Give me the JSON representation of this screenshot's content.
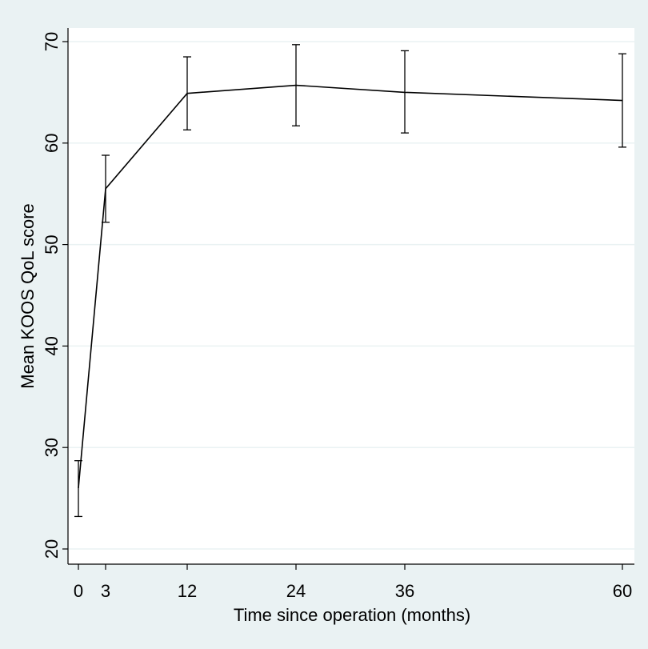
{
  "chart_data": {
    "type": "line",
    "title": "",
    "xlabel": "Time since operation (months)",
    "ylabel": "Mean KOOS QoL score",
    "xlim": [
      0,
      60
    ],
    "ylim": [
      20,
      70
    ],
    "xticks": [
      0,
      3,
      12,
      24,
      36,
      60
    ],
    "yticks": [
      20,
      30,
      40,
      50,
      60,
      70
    ],
    "grid": true,
    "x": [
      0,
      3,
      12,
      24,
      36,
      60
    ],
    "values": [
      26,
      55.5,
      64.9,
      65.7,
      65.0,
      64.2
    ],
    "ci_lower": [
      23.2,
      52.2,
      61.3,
      61.7,
      61.0,
      59.6
    ],
    "ci_upper": [
      28.7,
      58.8,
      68.5,
      69.7,
      69.1,
      68.8
    ],
    "colors": {
      "background": "#eaf2f3",
      "plot_area": "#ffffff",
      "line": "#000000"
    }
  }
}
